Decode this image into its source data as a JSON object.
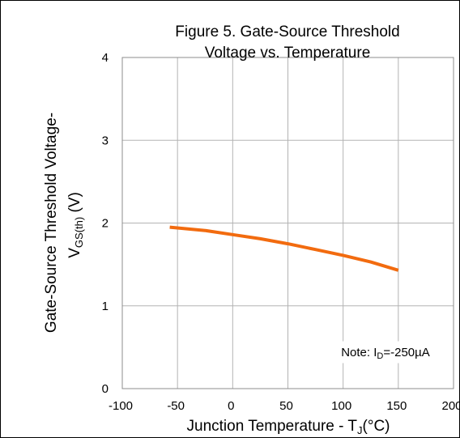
{
  "chart_data": {
    "type": "line",
    "title_lines": [
      "Figure 5. Gate-Source Threshold",
      "Voltage vs. Temperature"
    ],
    "xlabel": {
      "main": "Junction Temperature - T",
      "sub": "J",
      "suffix": "(°C)"
    },
    "ylabel": {
      "line1": "Gate-Source Threshold Voltage-",
      "line2_main": "V",
      "line2_sub": "GS(th)",
      "line2_suffix": " (V)"
    },
    "xlim": [
      -100,
      200
    ],
    "ylim": [
      0,
      4
    ],
    "xticks": [
      -100,
      -50,
      0,
      50,
      100,
      150,
      200
    ],
    "yticks": [
      0,
      1,
      2,
      3,
      4
    ],
    "grid": true,
    "series": [
      {
        "color": "#f26b0f",
        "x": [
          -57,
          -25,
          0,
          25,
          50,
          75,
          100,
          125,
          150
        ],
        "y": [
          1.95,
          1.91,
          1.86,
          1.81,
          1.75,
          1.68,
          1.61,
          1.53,
          1.43
        ]
      }
    ],
    "annotation": {
      "main": "Note: I",
      "sub": "D",
      "suffix": "=-250µA"
    }
  }
}
